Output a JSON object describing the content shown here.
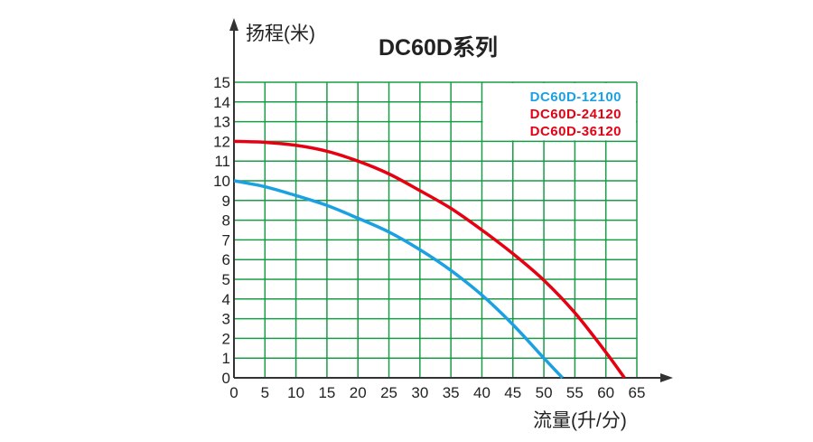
{
  "chart_data": {
    "type": "line",
    "title": "DC60D系列",
    "xlabel": "流量(升/分)",
    "ylabel": "扬程(米)",
    "xlim": [
      0,
      65
    ],
    "ylim": [
      0,
      15
    ],
    "xticks": [
      0,
      5,
      10,
      15,
      20,
      25,
      30,
      35,
      40,
      45,
      50,
      55,
      60,
      65
    ],
    "yticks": [
      0,
      1,
      2,
      3,
      4,
      5,
      6,
      7,
      8,
      9,
      10,
      11,
      12,
      13,
      14,
      15
    ],
    "grid": true,
    "legend_position": "top-right",
    "series": [
      {
        "name": "DC60D-12100",
        "color": "#1ba1e2",
        "x": [
          0,
          5,
          10,
          15,
          20,
          25,
          30,
          35,
          40,
          45,
          50,
          53
        ],
        "y": [
          10,
          9.7,
          9.25,
          8.75,
          8.1,
          7.4,
          6.5,
          5.45,
          4.2,
          2.7,
          1.0,
          0
        ]
      },
      {
        "name": "DC60D-24120",
        "color": "#e60012",
        "x": [],
        "y": []
      },
      {
        "name": "DC60D-36120",
        "color": "#e60012",
        "x": [
          0,
          5,
          10,
          15,
          20,
          25,
          30,
          35,
          40,
          45,
          50,
          55,
          60,
          63
        ],
        "y": [
          12,
          11.95,
          11.8,
          11.5,
          11,
          10.35,
          9.5,
          8.6,
          7.5,
          6.3,
          4.95,
          3.3,
          1.3,
          0
        ]
      }
    ],
    "grid_color": "#1a9b47"
  }
}
